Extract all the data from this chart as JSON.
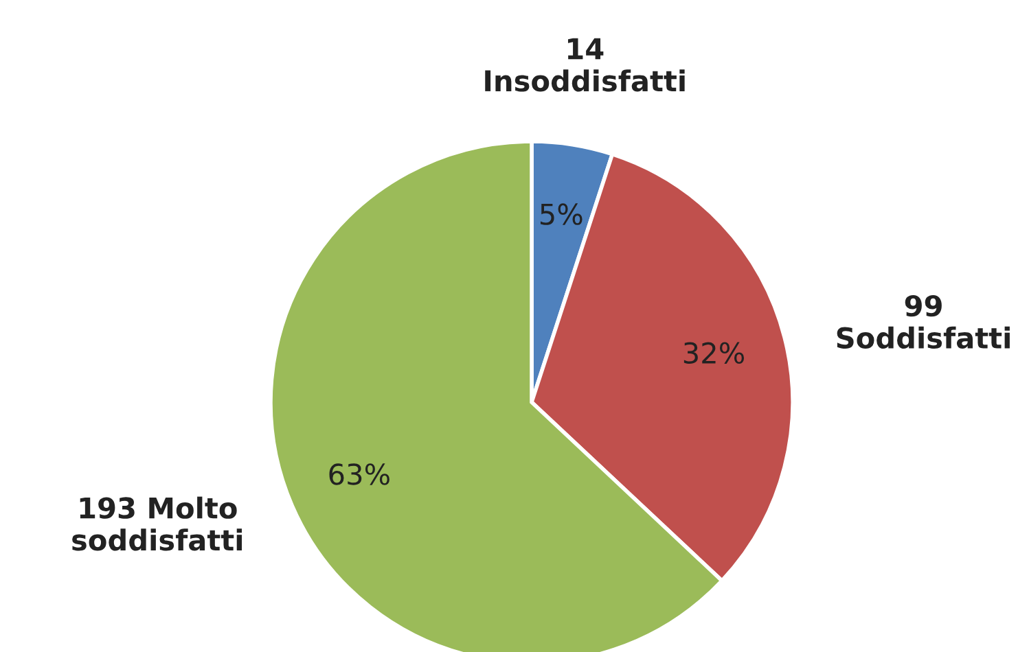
{
  "chart_data": {
    "type": "pie",
    "categories": [
      "14\nInsoddisfatti",
      "99\nSoddisfatti",
      "193 Molto\nsoddisfatti"
    ],
    "values": [
      5,
      32,
      63
    ],
    "colors": [
      "#4f81bd",
      "#c0504d",
      "#9bbb59"
    ],
    "value_labels": [
      "5%",
      "32%",
      "63%"
    ]
  }
}
